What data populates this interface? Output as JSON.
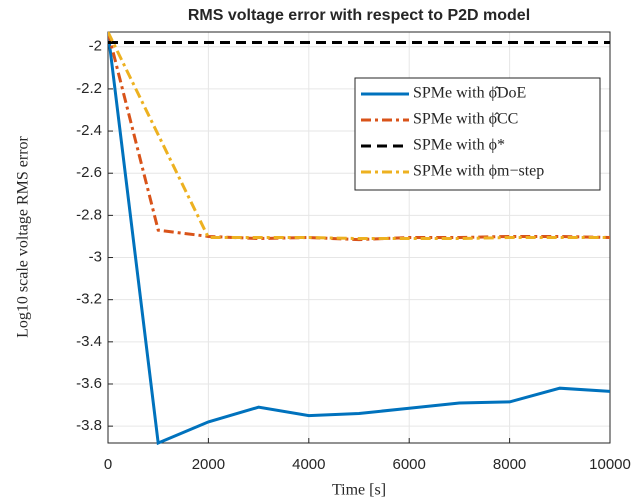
{
  "chart_data": {
    "type": "line",
    "title": "RMS voltage error with respect to P2D model",
    "xlabel": "Time [s]",
    "ylabel": "Log10 scale voltage RMS error",
    "xlim": [
      0,
      10000
    ],
    "xticks": [
      0,
      2000,
      4000,
      6000,
      8000,
      10000
    ],
    "ylim": [
      -3.88,
      -1.93
    ],
    "yticks": [
      -3.8,
      -3.6,
      -3.4,
      -3.2,
      -3,
      -2.8,
      -2.6,
      -2.4,
      -2.2,
      -2
    ],
    "grid": true,
    "legend": "upper right",
    "series": [
      {
        "name": "SPMe with ϕ̂DoE",
        "color": "#0072bd",
        "dash": "solid",
        "x": [
          0,
          1000,
          2000,
          3000,
          4000,
          5000,
          6000,
          7000,
          8000,
          9000,
          10000
        ],
        "values": [
          -1.93,
          -3.88,
          -3.78,
          -3.71,
          -3.75,
          -3.74,
          -3.715,
          -3.69,
          -3.685,
          -3.62,
          -3.635
        ]
      },
      {
        "name": "SPMe with ϕ̂CC",
        "color": "#d95319",
        "dash": "dashdot",
        "x": [
          0,
          1000,
          2000,
          3000,
          4000,
          5000,
          6000,
          7000,
          8000,
          9000,
          10000
        ],
        "values": [
          -1.93,
          -2.87,
          -2.9,
          -2.91,
          -2.905,
          -2.915,
          -2.905,
          -2.905,
          -2.9,
          -2.9,
          -2.905
        ]
      },
      {
        "name": "SPMe with ϕ*",
        "color": "#000000",
        "dash": "dashed",
        "x": [
          0,
          10000
        ],
        "values": [
          -1.98,
          -1.98
        ]
      },
      {
        "name": "SPMe with ϕm−step",
        "color": "#edb120",
        "dash": "dashdot",
        "x": [
          0,
          2000,
          3000,
          4000,
          5000,
          6000,
          7000,
          8000,
          9000,
          10000
        ],
        "values": [
          -1.93,
          -2.905,
          -2.905,
          -2.905,
          -2.91,
          -2.91,
          -2.91,
          -2.905,
          -2.905,
          -2.905
        ]
      }
    ]
  }
}
